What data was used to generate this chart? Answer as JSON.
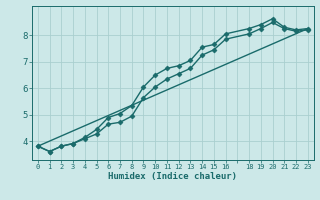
{
  "xlabel": "Humidex (Indice chaleur)",
  "bg_color": "#cce8e8",
  "grid_color": "#aacfcf",
  "line_color": "#1a6b6b",
  "x_labels": [
    "0",
    "1",
    "2",
    "3",
    "4",
    "5",
    "6",
    "7",
    "8",
    "9",
    "10",
    "11",
    "12",
    "13",
    "14",
    "15",
    "16",
    "",
    "18",
    "19",
    "20",
    "21",
    "22",
    "23"
  ],
  "xlim": [
    -0.5,
    23.5
  ],
  "ylim": [
    3.3,
    9.1
  ],
  "y_ticks": [
    4,
    5,
    6,
    7,
    8
  ],
  "line1_x": [
    0,
    1,
    2,
    3,
    4,
    5,
    6,
    7,
    8,
    9,
    10,
    11,
    12,
    13,
    14,
    15,
    16,
    18,
    19,
    20,
    21,
    22,
    23
  ],
  "line1_y": [
    3.82,
    3.62,
    3.82,
    3.92,
    4.15,
    4.45,
    4.9,
    5.05,
    5.35,
    6.05,
    6.5,
    6.75,
    6.85,
    7.05,
    7.55,
    7.65,
    8.05,
    8.25,
    8.4,
    8.62,
    8.3,
    8.2,
    8.25
  ],
  "line2_x": [
    0,
    1,
    2,
    3,
    4,
    5,
    6,
    7,
    8,
    9,
    10,
    11,
    12,
    13,
    14,
    15,
    16,
    18,
    19,
    20,
    21,
    22,
    23
  ],
  "line2_y": [
    3.82,
    3.62,
    3.82,
    3.92,
    4.1,
    4.28,
    4.65,
    4.72,
    4.95,
    5.65,
    6.05,
    6.35,
    6.55,
    6.75,
    7.25,
    7.45,
    7.85,
    8.05,
    8.25,
    8.48,
    8.25,
    8.15,
    8.2
  ],
  "line3_x": [
    0,
    23
  ],
  "line3_y": [
    3.82,
    8.25
  ],
  "marker": "D",
  "markersize": 2.5,
  "linewidth": 1.0
}
